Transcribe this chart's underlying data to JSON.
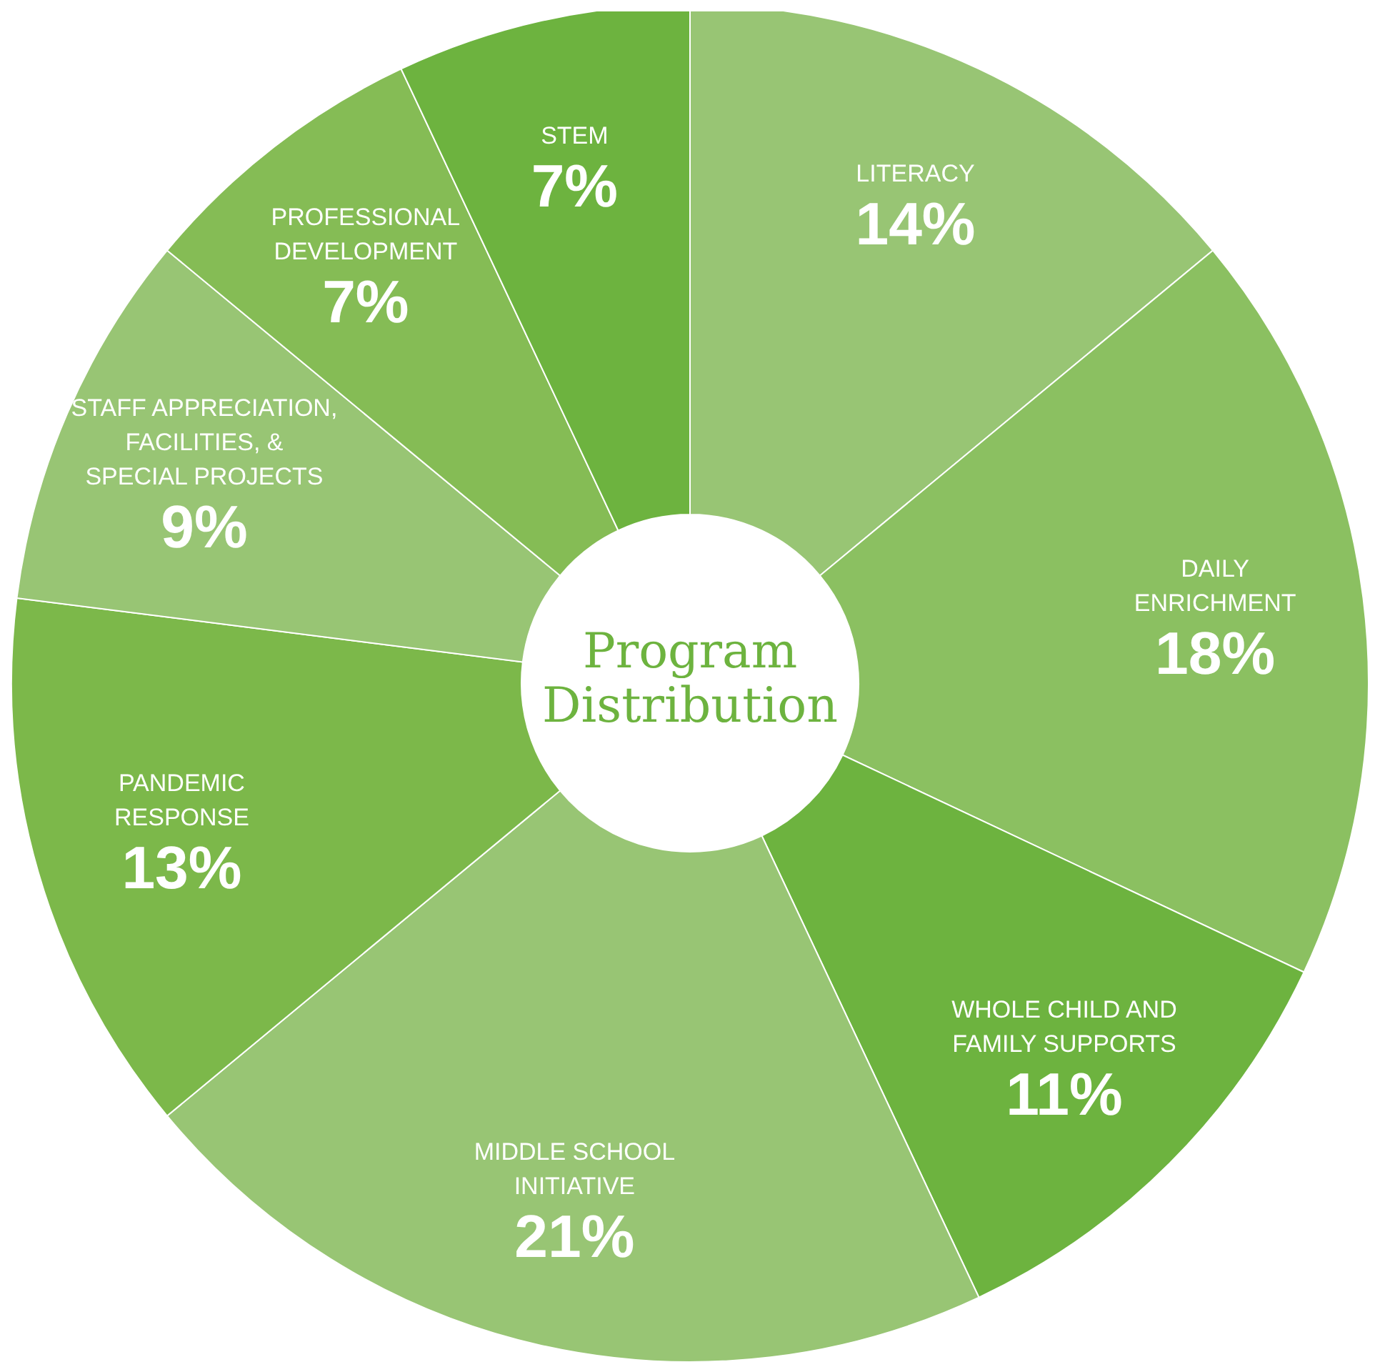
{
  "chart_data": {
    "type": "donut",
    "title": "Program Distribution",
    "categories": [
      "LITERACY",
      "DAILY\nENRICHMENT",
      "WHOLE CHILD AND\nFAMILY SUPPORTS",
      "MIDDLE SCHOOL\nINITIATIVE",
      "PANDEMIC\nRESPONSE",
      "STAFF APPRECIATION,\nFACILITIES, &\nSPECIAL PROJECTS",
      "PROFESSIONAL\nDEVELOPMENT",
      "STEM"
    ],
    "values": [
      14,
      18,
      11,
      21,
      13,
      9,
      7,
      7
    ],
    "value_labels": [
      "14%",
      "18%",
      "11%",
      "21%",
      "13%",
      "9%",
      "7%",
      "7%"
    ],
    "colors": [
      "#98c574",
      "#8bc061",
      "#6db33f",
      "#98c574",
      "#7cb84a",
      "#98c574",
      "#85bc55",
      "#6db33f"
    ]
  }
}
